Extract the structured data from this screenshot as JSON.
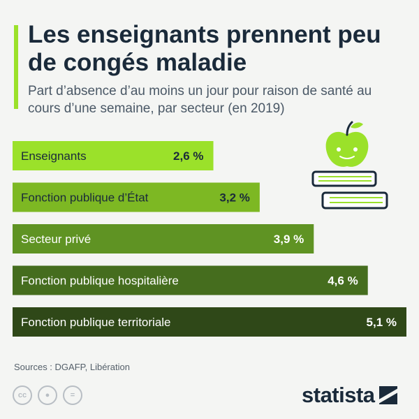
{
  "title": "Les enseignants prennent peu de congés maladie",
  "subtitle": "Part d’absence d’au moins un jour pour raison de santé au cours d’une semaine, par secteur (en 2019)",
  "source": "Sources : DGAFP, Libération",
  "brand": "statista",
  "colors": {
    "accent": "#9be12a",
    "title": "#1a2a3a",
    "bars": [
      "#9be12a",
      "#7db823",
      "#5f9323",
      "#456d1e",
      "#2f4818"
    ]
  },
  "icons": [
    "apple-icon",
    "books-icon",
    "cc-icon",
    "attribution-icon",
    "no-derivatives-icon",
    "statista-logo-icon"
  ],
  "chart_data": {
    "type": "bar",
    "orientation": "horizontal",
    "categories": [
      "Enseignants",
      "Fonction publique d’État",
      "Secteur privé",
      "Fonction publique hospitalière",
      "Fonction publique territoriale"
    ],
    "values": [
      2.6,
      3.2,
      3.9,
      4.6,
      5.1
    ],
    "value_labels": [
      "2,6 %",
      "3,2 %",
      "3,9 %",
      "4,6 %",
      "5,1 %"
    ],
    "unit": "%",
    "xlim": [
      0,
      5.1
    ],
    "grid": false
  }
}
